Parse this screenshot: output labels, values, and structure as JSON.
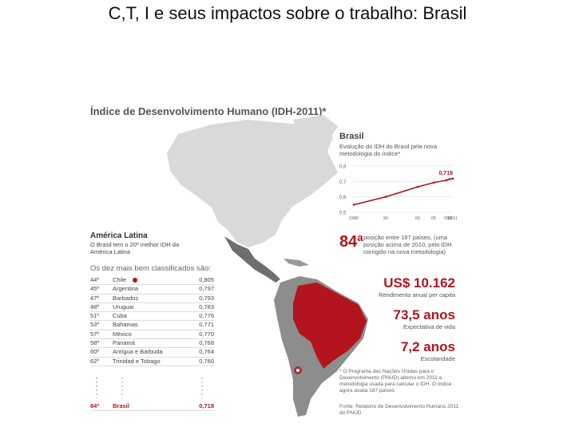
{
  "slide": {
    "title": "C,T, I e seus impactos sobre o trabalho: Brasil"
  },
  "infographic": {
    "title": "Índice de Desenvolvimento Humano (IDH-2011)*",
    "colors": {
      "accent": "#b3141d",
      "land": "#d9d9d9",
      "highlight": "#555555"
    },
    "brasil_panel": {
      "title": "Brasil",
      "subtitle": "Evolução do IDH do Brasil pela nova metodologia do índice*",
      "latest_value": "0,718",
      "y_ticks": [
        "0,8",
        "0,7",
        "0,6",
        "0,5"
      ],
      "x_ticks": [
        "1980",
        "90",
        "00",
        "05",
        "09",
        "10",
        "2011"
      ],
      "series": [
        {
          "x": 1980,
          "y": 0.549
        },
        {
          "x": 1990,
          "y": 0.6
        },
        {
          "x": 2000,
          "y": 0.665
        },
        {
          "x": 2005,
          "y": 0.692
        },
        {
          "x": 2009,
          "y": 0.708
        },
        {
          "x": 2010,
          "y": 0.715
        },
        {
          "x": 2011,
          "y": 0.718
        }
      ],
      "rank": "84ª",
      "rank_note": "posição entre 187 países, (uma posição acima de 2010, pelo IDH corrigido na nova metodologia)",
      "income": "US$ 10.162",
      "income_note": "Rendimento anual per capita",
      "life": "73,5 anos",
      "life_note": "Expectativa de vida",
      "school": "7,2 anos",
      "school_note": "Escolaridade",
      "footnote": "* O Programa das Nações Unidas para o Desenvolvimento (PNUD) alterou em 2011 a metodologia usada para calcular o IDH. O índice agora avalia 187 países",
      "source": "Fonte: Relatório de Desenvolvimento Humano 2011 do PNUD"
    },
    "latam": {
      "title": "América Latina",
      "subtitle": "O Brasil tem o 20º melhor IDH da América Latina",
      "list_title": "Os dez mais bem classificados são:",
      "rows": [
        {
          "rank": "44º",
          "country": "Chile",
          "value": "0,805"
        },
        {
          "rank": "45º",
          "country": "Argentina",
          "value": "0,797"
        },
        {
          "rank": "47º",
          "country": "Barbados",
          "value": "0,793"
        },
        {
          "rank": "48º",
          "country": "Uruguai",
          "value": "0,783"
        },
        {
          "rank": "51º",
          "country": "Cuba",
          "value": "0,776"
        },
        {
          "rank": "53º",
          "country": "Bahamas",
          "value": "0,771"
        },
        {
          "rank": "57º",
          "country": "México",
          "value": "0,770"
        },
        {
          "rank": "58º",
          "country": "Panamá",
          "value": "0,768"
        },
        {
          "rank": "60º",
          "country": "Antígua e Barbuda",
          "value": "0,764"
        },
        {
          "rank": "62º",
          "country": "Trinidad e Tobago",
          "value": "0,760"
        }
      ],
      "brasil_row": {
        "rank": "84º",
        "country": "Brasil",
        "value": "0,718"
      }
    }
  }
}
